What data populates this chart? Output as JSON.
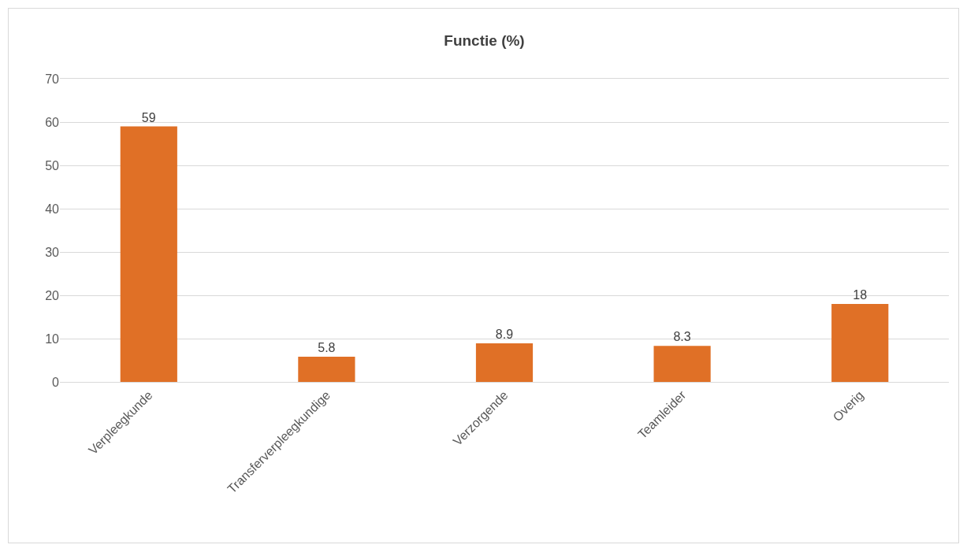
{
  "chart_data": {
    "type": "bar",
    "title": "Functie (%)",
    "categories": [
      "Verpleegkunde",
      "Transferverpleegkundige",
      "Verzorgende",
      "Teamleider",
      "Overig"
    ],
    "values": [
      59,
      5.8,
      8.9,
      8.3,
      18
    ],
    "color": "#e07026",
    "ylim": [
      0,
      70
    ],
    "yticks": [
      0,
      10,
      20,
      30,
      40,
      50,
      60,
      70
    ],
    "grid": "y",
    "data_labels": true
  }
}
